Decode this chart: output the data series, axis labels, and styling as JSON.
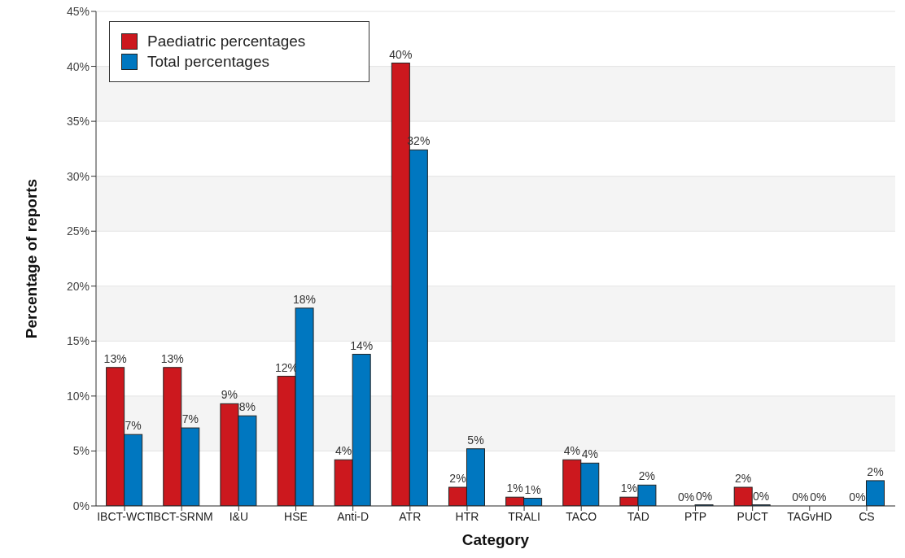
{
  "chart_data": {
    "type": "bar",
    "xlabel": "Category",
    "ylabel": "Percentage of reports",
    "categories": [
      "IBCT-WCT",
      "IBCT-SRNM",
      "I&U",
      "HSE",
      "Anti-D",
      "ATR",
      "HTR",
      "TRALI",
      "TACO",
      "TAD",
      "PTP",
      "PUCT",
      "TAGvHD",
      "CS"
    ],
    "series": [
      {
        "name": "Paediatric percentages",
        "color": "#cc181e",
        "values": [
          12.6,
          12.6,
          9.3,
          11.8,
          4.2,
          40.3,
          1.7,
          0.8,
          4.2,
          0.8,
          0,
          1.7,
          0,
          0
        ],
        "value_labels": [
          "13%",
          "13%",
          "9%",
          "12%",
          "4%",
          "40%",
          "2%",
          "1%",
          "4%",
          "1%",
          "0%",
          "2%",
          "0%",
          "0%"
        ]
      },
      {
        "name": "Total percentages",
        "color": "#0077c0",
        "values": [
          6.5,
          7.1,
          8.2,
          18.0,
          13.8,
          32.4,
          5.2,
          0.7,
          3.9,
          1.9,
          0.1,
          0.1,
          0,
          2.3
        ],
        "value_labels": [
          "7%",
          "7%",
          "8%",
          "18%",
          "14%",
          "32%",
          "5%",
          "1%",
          "4%",
          "2%",
          "0%",
          "0%",
          "0%",
          "2%"
        ]
      }
    ],
    "ylim": [
      0,
      45
    ],
    "yticks": [
      {
        "value": 0,
        "label": "0%"
      },
      {
        "value": 5,
        "label": "5%"
      },
      {
        "value": 10,
        "label": "10%"
      },
      {
        "value": 15,
        "label": "15%"
      },
      {
        "value": 20,
        "label": "20%"
      },
      {
        "value": 25,
        "label": "25%"
      },
      {
        "value": 30,
        "label": "30%"
      },
      {
        "value": 35,
        "label": "35%"
      },
      {
        "value": 40,
        "label": "40%"
      },
      {
        "value": 45,
        "label": "45%"
      }
    ],
    "grid": "y",
    "legend": "top left"
  }
}
